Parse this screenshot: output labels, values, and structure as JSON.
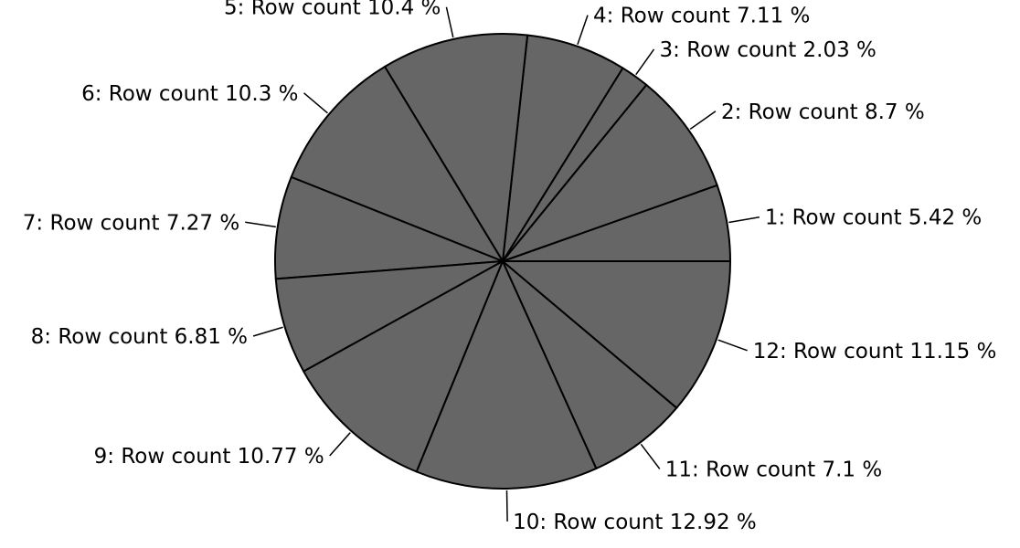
{
  "chart_data": {
    "type": "pie",
    "title": "",
    "slices": [
      {
        "label": "1: Row count 5.42 %",
        "category": "1",
        "value": 5.42
      },
      {
        "label": "2: Row count 8.7 %",
        "category": "2",
        "value": 8.7
      },
      {
        "label": "3: Row count 2.03 %",
        "category": "3",
        "value": 2.03
      },
      {
        "label": "4: Row count 7.11 %",
        "category": "4",
        "value": 7.11
      },
      {
        "label": "5: Row count 10.4 %",
        "category": "5",
        "value": 10.4
      },
      {
        "label": "6: Row count 10.3 %",
        "category": "6",
        "value": 10.3
      },
      {
        "label": "7: Row count 7.27 %",
        "category": "7",
        "value": 7.27
      },
      {
        "label": "8: Row count 6.81 %",
        "category": "8",
        "value": 6.81
      },
      {
        "label": "9: Row count 10.77 %",
        "category": "9",
        "value": 10.77
      },
      {
        "label": "10: Row count 12.92 %",
        "category": "10",
        "value": 12.92
      },
      {
        "label": "11: Row count 7.1 %",
        "category": "11",
        "value": 7.1
      },
      {
        "label": "12: Row count 11.15 %",
        "category": "12",
        "value": 11.15
      }
    ],
    "slice_color": "#666666",
    "outline_color": "#000000",
    "start_position": "3 o'clock",
    "direction": "counterclockwise",
    "legend": "none"
  }
}
